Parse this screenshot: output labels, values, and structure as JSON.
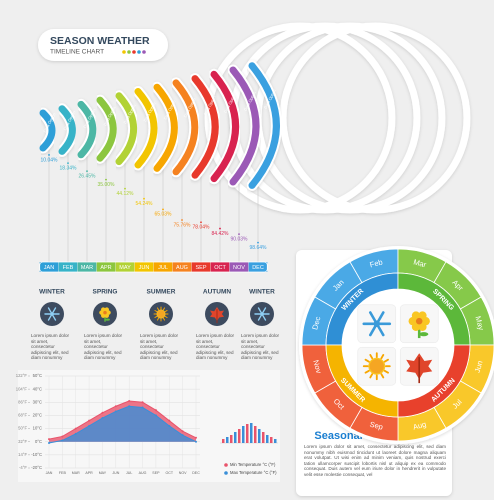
{
  "header": {
    "title": "SEASON WEATHER",
    "subtitle": "TIMELINE CHART"
  },
  "chart_data": [
    {
      "type": "timeline",
      "categories": [
        "JAN",
        "FEB",
        "MAR",
        "APR",
        "MAY",
        "JUN",
        "JUL",
        "AUG",
        "SEP",
        "OCT",
        "NOV",
        "DEC"
      ],
      "values": [
        10.04,
        18.34,
        26.45,
        35.0,
        44.12,
        54.24,
        65.03,
        75.76,
        78.04,
        84.42,
        90.03,
        98.64
      ],
      "value_labels": [
        "10.04%",
        "18.34%",
        "26.45%",
        "35.00%",
        "44.12%",
        "54.24%",
        "65.03%",
        "75.76%",
        "78.04%",
        "84.42%",
        "90.03%",
        "98.64%"
      ],
      "arc_label": "Data Option",
      "colors": [
        "#2e9fd8",
        "#37b3c8",
        "#4cb7a5",
        "#8cc63f",
        "#b2d235",
        "#f2c500",
        "#f7a600",
        "#f58220",
        "#e8392c",
        "#d8234f",
        "#9b59b6",
        "#3aa0e0"
      ]
    },
    {
      "type": "area",
      "categories": [
        "JAN",
        "FEB",
        "MAR",
        "APR",
        "MAY",
        "JUN",
        "JUL",
        "AUG",
        "SEP",
        "OCT",
        "NOV",
        "DEC"
      ],
      "series": [
        {
          "name": "Min Temperature °C (°F)",
          "color": "#e9546b",
          "values": [
            2,
            4,
            10,
            16,
            22,
            27,
            31,
            30,
            24,
            16,
            8,
            3
          ]
        },
        {
          "name": "Max Temperature °C (°F)",
          "color": "#3a8fd8",
          "values": [
            -1,
            1,
            6,
            12,
            18,
            23,
            27,
            26,
            20,
            12,
            5,
            0
          ]
        }
      ],
      "ylim": [
        -20,
        50
      ],
      "yticks": [
        {
          "value": -20,
          "label": "-20°C"
        },
        {
          "value": -10,
          "label": "-10°C"
        },
        {
          "value": 0,
          "label": "0°C"
        },
        {
          "value": 10,
          "label": "10°C"
        },
        {
          "value": 20,
          "label": "20°C"
        },
        {
          "value": 30,
          "label": "30°C"
        },
        {
          "value": 40,
          "label": "40°C"
        },
        {
          "value": 50,
          "label": "50°C"
        }
      ],
      "y2lim": [
        -4,
        122
      ],
      "y2ticks": [
        {
          "value": -4,
          "label": "-4°F"
        },
        {
          "value": 14,
          "label": "14°F"
        },
        {
          "value": 32,
          "label": "32°F"
        },
        {
          "value": 50,
          "label": "50°F"
        },
        {
          "value": 68,
          "label": "68°F"
        },
        {
          "value": 86,
          "label": "86°F"
        },
        {
          "value": 104,
          "label": "104°F"
        },
        {
          "value": 122,
          "label": "122°F"
        }
      ],
      "grid": true
    },
    {
      "type": "bar",
      "values": [
        4,
        6,
        8,
        11,
        14,
        17,
        19,
        20,
        17,
        14,
        11,
        8,
        6,
        4
      ],
      "colors": [
        "#e9546b",
        "#3a8fd8"
      ]
    }
  ],
  "seasons": [
    {
      "label": "WINTER",
      "icon": "snow",
      "text": "Lorem ipsum dolor sit amet, consectetur adipiscing elit, sed diam nonummy"
    },
    {
      "label": "SPRING",
      "icon": "flower",
      "text": "Lorem ipsum dolor sit amet, consectetur adipiscing elit, sed diam nonummy"
    },
    {
      "label": "SUMMER",
      "icon": "sun",
      "text": "Lorem ipsum dolor sit amet, consectetur adipiscing elit, sed diam nonummy"
    },
    {
      "label": "AUTUMN",
      "icon": "leaf",
      "text": "Lorem ipsum dolor sit amet, consectetur adipiscing elit, sed diam nonummy"
    },
    {
      "label": "WINTER",
      "icon": "snow",
      "text": "Lorem ipsum dolor sit amet, consectetur adipiscing elit, sed diam nonummy"
    }
  ],
  "wheel": {
    "months": [
      "Jan",
      "Feb",
      "Mar",
      "Apr",
      "May",
      "Jun",
      "Jul",
      "Aug",
      "Sep",
      "Oct",
      "Nov",
      "Dec"
    ],
    "seasons": [
      "WINTER",
      "SPRING",
      "SUMMER",
      "AUTUMN"
    ],
    "colors": [
      "#2f8fd5",
      "#5cb83a",
      "#f5b400",
      "#e8412c"
    ],
    "ring_colors": [
      "#4aa9e6",
      "#86c94a",
      "#f9c82a",
      "#f0613c"
    ]
  },
  "panel": {
    "title": "Seasonal Temperature",
    "text": "Lorem ipsum dolor sit amet, consectetur adipiscing elit, sed diam nonummy nibh euismod tincidunt ut laoreet dolore magna aliquam erat volutpat. Ut wisi enim ad minim veniam, quis nostrud exerci tation ullamcorper suscipit lobortis nisl ut aliquip ex ea commodo consequat. Duis autem vel eum iriure dolor in hendrerit in vulputate velit esse molestie consequat, vel"
  }
}
